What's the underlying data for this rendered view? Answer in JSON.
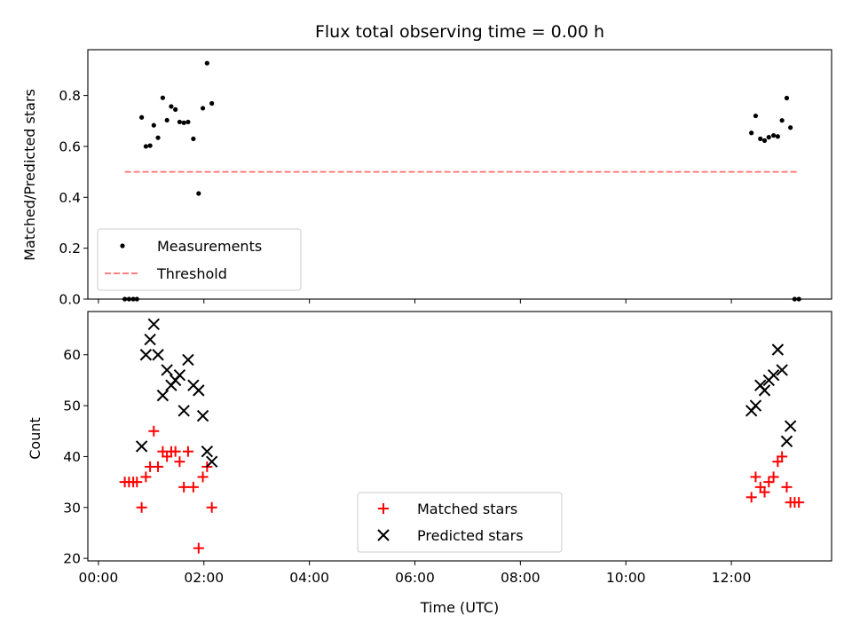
{
  "chart_data": [
    {
      "type": "scatter",
      "title": "Flux total observing time = 0.00 h",
      "xlabel": "",
      "ylabel": "Matched/Predicted stars",
      "xlim": [
        -0.2,
        13.9
      ],
      "ylim": [
        0.0,
        0.98
      ],
      "x_ticks": [
        0,
        2,
        4,
        6,
        8,
        10,
        12
      ],
      "y_ticks": [
        0.0,
        0.2,
        0.4,
        0.6,
        0.8
      ],
      "y_tick_labels": [
        "0.0",
        "0.2",
        "0.4",
        "0.6",
        "0.8"
      ],
      "legend_position": "lower-left",
      "series": [
        {
          "name": "Measurements",
          "marker": "dot",
          "color": "#000000",
          "points": [
            [
              0.5,
              0.0
            ],
            [
              0.58,
              0.0
            ],
            [
              0.66,
              0.0
            ],
            [
              0.73,
              0.0
            ],
            [
              0.82,
              0.714
            ],
            [
              0.9,
              0.6
            ],
            [
              0.98,
              0.603
            ],
            [
              1.05,
              0.683
            ],
            [
              1.13,
              0.634
            ],
            [
              1.22,
              0.791
            ],
            [
              1.3,
              0.703
            ],
            [
              1.38,
              0.757
            ],
            [
              1.46,
              0.745
            ],
            [
              1.54,
              0.696
            ],
            [
              1.62,
              0.693
            ],
            [
              1.7,
              0.696
            ],
            [
              1.8,
              0.63
            ],
            [
              1.9,
              0.415
            ],
            [
              1.98,
              0.75
            ],
            [
              2.06,
              0.927
            ],
            [
              2.15,
              0.769
            ],
            [
              12.38,
              0.653
            ],
            [
              12.46,
              0.72
            ],
            [
              12.55,
              0.63
            ],
            [
              12.63,
              0.623
            ],
            [
              12.71,
              0.636
            ],
            [
              12.8,
              0.643
            ],
            [
              12.88,
              0.639
            ],
            [
              12.96,
              0.702
            ],
            [
              13.05,
              0.79
            ],
            [
              13.12,
              0.674
            ],
            [
              13.2,
              0.0
            ],
            [
              13.28,
              0.0
            ]
          ]
        },
        {
          "name": "Threshold",
          "line_style": "dashed",
          "color": "#ff7f7f",
          "x": [
            0.5,
            13.28
          ],
          "y": [
            0.5,
            0.5
          ]
        }
      ]
    },
    {
      "type": "scatter",
      "title": "",
      "xlabel": "Time (UTC)",
      "ylabel": "Count",
      "xlim": [
        -0.2,
        13.9
      ],
      "ylim": [
        19.5,
        68.5
      ],
      "x_ticks": [
        0,
        2,
        4,
        6,
        8,
        10,
        12
      ],
      "x_tick_labels": [
        "00:00",
        "02:00",
        "04:00",
        "06:00",
        "08:00",
        "10:00",
        "12:00"
      ],
      "y_ticks": [
        20,
        30,
        40,
        50,
        60
      ],
      "y_tick_labels": [
        "20",
        "30",
        "40",
        "50",
        "60"
      ],
      "legend_position": "lower-center",
      "series": [
        {
          "name": "Matched stars",
          "marker": "plus",
          "color": "#ff0000",
          "points": [
            [
              0.5,
              35
            ],
            [
              0.58,
              35
            ],
            [
              0.66,
              35
            ],
            [
              0.73,
              35
            ],
            [
              0.82,
              30
            ],
            [
              0.9,
              36
            ],
            [
              0.98,
              38
            ],
            [
              1.05,
              45
            ],
            [
              1.13,
              38
            ],
            [
              1.22,
              41
            ],
            [
              1.3,
              40
            ],
            [
              1.38,
              41
            ],
            [
              1.46,
              41
            ],
            [
              1.54,
              39
            ],
            [
              1.62,
              34
            ],
            [
              1.7,
              41
            ],
            [
              1.8,
              34
            ],
            [
              1.9,
              22
            ],
            [
              1.98,
              36
            ],
            [
              2.06,
              38
            ],
            [
              2.15,
              30
            ],
            [
              12.38,
              32
            ],
            [
              12.46,
              36
            ],
            [
              12.55,
              34
            ],
            [
              12.63,
              33
            ],
            [
              12.71,
              35
            ],
            [
              12.8,
              36
            ],
            [
              12.88,
              39
            ],
            [
              12.96,
              40
            ],
            [
              13.05,
              34
            ],
            [
              13.12,
              31
            ],
            [
              13.2,
              31
            ],
            [
              13.28,
              31
            ]
          ]
        },
        {
          "name": "Predicted stars",
          "marker": "x",
          "color": "#000000",
          "points": [
            [
              0.82,
              42
            ],
            [
              0.9,
              60
            ],
            [
              0.98,
              63
            ],
            [
              1.05,
              66
            ],
            [
              1.13,
              60
            ],
            [
              1.22,
              52
            ],
            [
              1.3,
              57
            ],
            [
              1.38,
              54
            ],
            [
              1.46,
              55
            ],
            [
              1.54,
              56
            ],
            [
              1.62,
              49
            ],
            [
              1.7,
              59
            ],
            [
              1.8,
              54
            ],
            [
              1.9,
              53
            ],
            [
              1.98,
              48
            ],
            [
              2.06,
              41
            ],
            [
              2.15,
              39
            ],
            [
              12.38,
              49
            ],
            [
              12.46,
              50
            ],
            [
              12.55,
              54
            ],
            [
              12.63,
              53
            ],
            [
              12.71,
              55
            ],
            [
              12.8,
              56
            ],
            [
              12.88,
              61
            ],
            [
              12.96,
              57
            ],
            [
              13.05,
              43
            ],
            [
              13.12,
              46
            ]
          ]
        }
      ]
    }
  ]
}
